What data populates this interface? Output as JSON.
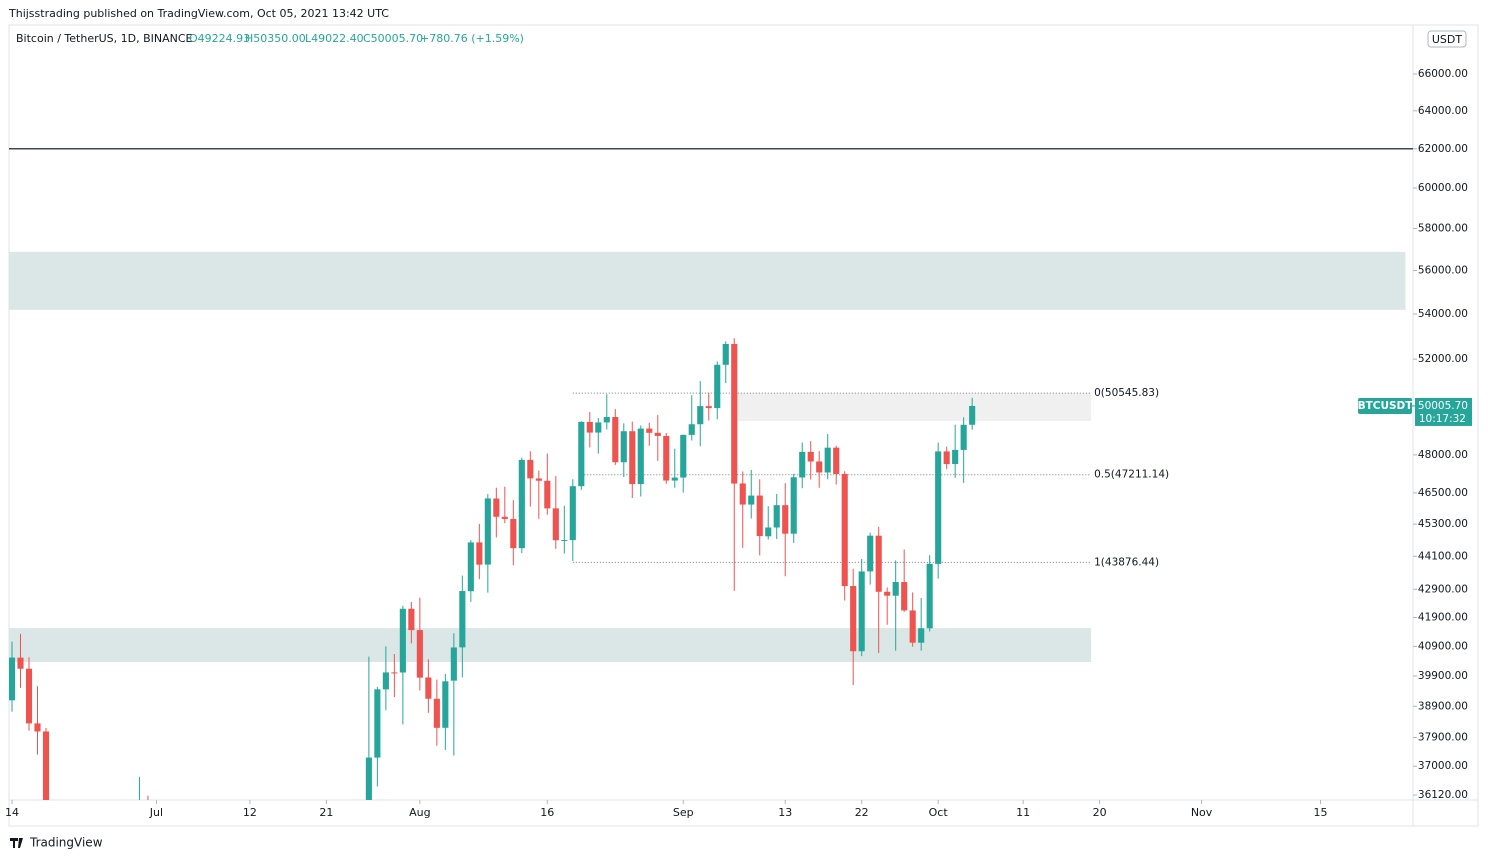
{
  "header": {
    "publisher": "Thijsstrading published on TradingView.com, Oct 05, 2021 13:42 UTC",
    "brand": "TradingView"
  },
  "chart_data": {
    "type": "candlestick",
    "legend": {
      "symbol": "Bitcoin / TetherUS, 1D, BINANCE",
      "open": "O49224.93",
      "high": "H50350.00",
      "low": "L49022.40",
      "close": "C50005.70",
      "change": "+780.76 (+1.59%)"
    },
    "currency": "USDT",
    "log_scale": true,
    "up_color": "#26a69a",
    "down_color": "#ef5350",
    "x": [
      "06-14",
      "06-15",
      "06-16",
      "06-17",
      "06-18",
      "06-29",
      "06-30",
      "07-26",
      "07-27",
      "07-28",
      "07-29",
      "07-30",
      "07-31",
      "08-01",
      "08-02",
      "08-03",
      "08-04",
      "08-05",
      "08-06",
      "08-07",
      "08-08",
      "08-09",
      "08-10",
      "08-11",
      "08-12",
      "08-13",
      "08-14",
      "08-15",
      "08-16",
      "08-17",
      "08-18",
      "08-19",
      "08-20",
      "08-21",
      "08-22",
      "08-23",
      "08-24",
      "08-25",
      "08-26",
      "08-27",
      "08-28",
      "08-29",
      "08-30",
      "08-31",
      "09-01",
      "09-02",
      "09-03",
      "09-04",
      "09-05",
      "09-06",
      "09-07",
      "09-08",
      "09-09",
      "09-10",
      "09-11",
      "09-12",
      "09-13",
      "09-14",
      "09-15",
      "09-16",
      "09-17",
      "09-18",
      "09-19",
      "09-20",
      "09-21",
      "09-22",
      "09-23",
      "09-24",
      "09-25",
      "09-26",
      "09-27",
      "09-28",
      "09-29",
      "09-30",
      "10-01",
      "10-02",
      "10-03",
      "10-04",
      "10-05"
    ],
    "open": [
      39097,
      40516,
      40143,
      38349,
      38092,
      34475,
      35867,
      35398,
      37269,
      39456,
      40019,
      40016,
      42206,
      41461,
      39850,
      39146,
      38208,
      39744,
      40866,
      42832,
      44614,
      43794,
      46280,
      45580,
      45497,
      44400,
      47800,
      47064,
      46973,
      45902,
      44695,
      44699,
      46760,
      49340,
      48905,
      49321,
      49546,
      47706,
      48960,
      46843,
      49069,
      48895,
      48767,
      46982,
      47100,
      48810,
      49246,
      49998,
      49917,
      51756,
      52666,
      46868,
      46048,
      46396,
      44842,
      45173,
      46025,
      44940,
      47103,
      48121,
      47737,
      47299,
      48292,
      47241,
      43016,
      40734,
      43546,
      44865,
      42810,
      42670,
      43160,
      42147,
      41025,
      41524,
      43820,
      48141,
      47634,
      48200,
      49224.93
    ],
    "high": [
      41064,
      41330,
      40527,
      39559,
      38202,
      36675,
      36100,
      40550,
      39542,
      40900,
      40640,
      42316,
      42448,
      42599,
      40459,
      39780,
      39969,
      41350,
      43392,
      44700,
      45310,
      46454,
      46700,
      46743,
      46218,
      47886,
      48144,
      47372,
      48053,
      47160,
      46000,
      47033,
      49382,
      49757,
      49500,
      50500,
      49876,
      49284,
      49355,
      49200,
      49309,
      49632,
      48888,
      48246,
      48821,
      50450,
      51054,
      50558,
      51900,
      52780,
      52920,
      47340,
      47399,
      47033,
      45987,
      46460,
      46880,
      47250,
      48500,
      48557,
      48150,
      48843,
      48372,
      47347,
      43639,
      44000,
      44978,
      45200,
      42966,
      43950,
      44350,
      42787,
      42590,
      44141,
      48495,
      48336,
      49228,
      49536,
      50350
    ],
    "low": [
      38730,
      39506,
      38116,
      37365,
      35129,
      34239,
      34017,
      35205,
      36383,
      38772,
      39200,
      38316,
      41000,
      39422,
      38690,
      37642,
      37508,
      37332,
      39853,
      42450,
      43261,
      42780,
      44800,
      45341,
      43770,
      44217,
      45971,
      45500,
      45660,
      44376,
      44203,
      43927,
      46622,
      48300,
      48050,
      49029,
      47600,
      47116,
      46300,
      46360,
      48370,
      47762,
      46853,
      46700,
      46512,
      48584,
      48349,
      49400,
      49450,
      50969,
      42843,
      44412,
      45513,
      44132,
      44722,
      44742,
      43370,
      44594,
      46682,
      47021,
      46699,
      47033,
      46829,
      42500,
      39600,
      40565,
      43069,
      40675,
      41646,
      40750,
      42098,
      40888,
      40753,
      41410,
      43283,
      47430,
      47088,
      46891,
      49022.4
    ],
    "close": [
      40519,
      40144,
      38349,
      38092,
      35820,
      35867,
      35040,
      37269,
      39457,
      40019,
      40016,
      42206,
      41461,
      39845,
      39147,
      38207,
      39723,
      40862,
      42836,
      44614,
      43792,
      46285,
      45580,
      45497,
      44400,
      47800,
      47068,
      46974,
      45901,
      44695,
      44705,
      46760,
      49339,
      48905,
      49321,
      49546,
      47707,
      48960,
      46843,
      49069,
      48895,
      48767,
      46982,
      47100,
      48810,
      49246,
      49999,
      49915,
      51756,
      52663,
      46863,
      46048,
      46395,
      44851,
      45173,
      46025,
      44940,
      47111,
      48121,
      47737,
      47299,
      48292,
      47241,
      43015,
      40734,
      43543,
      44865,
      42810,
      42670,
      43160,
      42147,
      41026,
      41524,
      43824,
      48141,
      47634,
      48200,
      49224,
      50005.7
    ],
    "xlim": [
      "06-14",
      "11-26"
    ],
    "xticks": [
      {
        "value": "06-14",
        "label": "14"
      },
      {
        "value": "07-01",
        "label": "Jul"
      },
      {
        "value": "07-12",
        "label": "12"
      },
      {
        "value": "07-21",
        "label": "21"
      },
      {
        "value": "08-01",
        "label": "Aug"
      },
      {
        "value": "08-16",
        "label": "16"
      },
      {
        "value": "09-01",
        "label": "Sep"
      },
      {
        "value": "09-13",
        "label": "13"
      },
      {
        "value": "09-22",
        "label": "22"
      },
      {
        "value": "10-01",
        "label": "Oct"
      },
      {
        "value": "10-11",
        "label": "11"
      },
      {
        "value": "10-20",
        "label": "20"
      },
      {
        "value": "11-01",
        "label": "Nov"
      },
      {
        "value": "11-15",
        "label": "15"
      }
    ],
    "ylim": [
      35970,
      68760
    ],
    "yticks": [
      {
        "value": 36120,
        "label": "36120.00"
      },
      {
        "value": 37000,
        "label": "37000.00"
      },
      {
        "value": 37900,
        "label": "37900.00"
      },
      {
        "value": 38900,
        "label": "38900.00"
      },
      {
        "value": 39900,
        "label": "39900.00"
      },
      {
        "value": 40900,
        "label": "40900.00"
      },
      {
        "value": 41900,
        "label": "41900.00"
      },
      {
        "value": 42900,
        "label": "42900.00"
      },
      {
        "value": 44100,
        "label": "44100.00"
      },
      {
        "value": 45300,
        "label": "45300.00"
      },
      {
        "value": 46500,
        "label": "46500.00"
      },
      {
        "value": 48000,
        "label": "48000.00"
      },
      {
        "value": 52000,
        "label": "52000.00"
      },
      {
        "value": 54000,
        "label": "54000.00"
      },
      {
        "value": 56000,
        "label": "56000.00"
      },
      {
        "value": 58000,
        "label": "58000.00"
      },
      {
        "value": 60000,
        "label": "60000.00"
      },
      {
        "value": 62000,
        "label": "62000.00"
      },
      {
        "value": 64000,
        "label": "64000.00"
      },
      {
        "value": 66000,
        "label": "66000.00"
      }
    ],
    "hline": {
      "value": 62000,
      "color": "#434651"
    },
    "zones": [
      {
        "from": 54190,
        "to": 56880,
        "x0": "06-14",
        "x1": "11-25",
        "color": "#dbe6e7"
      },
      {
        "from": 40370,
        "to": 41530,
        "x0": "06-14",
        "x1": "10-19",
        "color": "#dbe6e7"
      },
      {
        "from": 49380,
        "to": 50545.83,
        "x0": "09-07",
        "x1": "10-19",
        "color": "#f0f0f0"
      }
    ],
    "fib_levels": [
      {
        "value": 50545.83,
        "label": "0(50545.83)",
        "x0": "08-19"
      },
      {
        "value": 47211.14,
        "label": "0.5(47211.14)",
        "x0": "08-20"
      },
      {
        "value": 43876.44,
        "label": "1(43876.44)",
        "x0": "08-19"
      }
    ],
    "fib_end": "10-19",
    "last": {
      "value": 50005.7,
      "label": "50005.70",
      "countdown": "10:17:32",
      "symbol": "BTCUSDT"
    }
  }
}
